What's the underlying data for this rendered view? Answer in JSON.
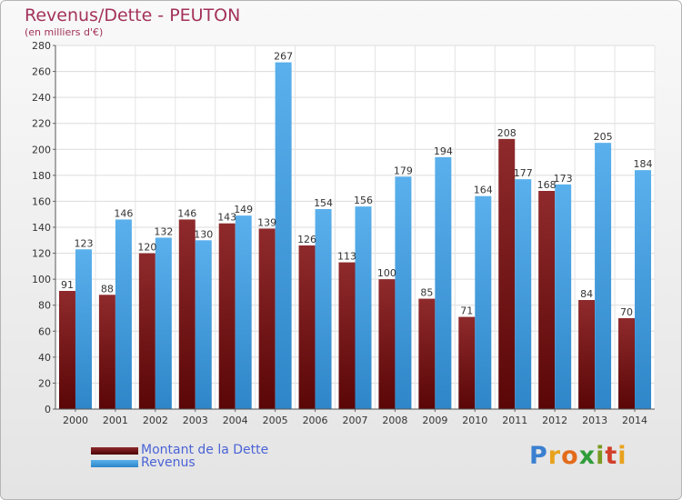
{
  "chart_data": {
    "type": "bar",
    "title": "Revenus/Dette - PEUTON",
    "subtitle": "(en milliers d'€)",
    "categories": [
      "2000",
      "2001",
      "2002",
      "2003",
      "2004",
      "2005",
      "2006",
      "2007",
      "2008",
      "2009",
      "2010",
      "2011",
      "2012",
      "2013",
      "2014"
    ],
    "series": [
      {
        "name": "Montant de la Dette",
        "color": "#6b0f12",
        "values": [
          91,
          88,
          120,
          146,
          143,
          139,
          126,
          113,
          100,
          85,
          71,
          208,
          168,
          84,
          70
        ]
      },
      {
        "name": "Revenus",
        "color": "#4aa3e3",
        "values": [
          123,
          146,
          132,
          130,
          149,
          267,
          154,
          156,
          179,
          194,
          164,
          177,
          173,
          205,
          184
        ]
      }
    ],
    "ylim": [
      0,
      280
    ],
    "ytick_step": 20,
    "grid": true,
    "legend": "bottom-left"
  },
  "brand": {
    "letters": [
      "P",
      "r",
      "o",
      "x",
      "i",
      "t",
      "i"
    ],
    "colors": [
      "#3a7fd0",
      "#e8a21c",
      "#e36b1a",
      "#2f9d3a",
      "#7a9a20",
      "#d23f2b",
      "#e8a21c"
    ]
  }
}
